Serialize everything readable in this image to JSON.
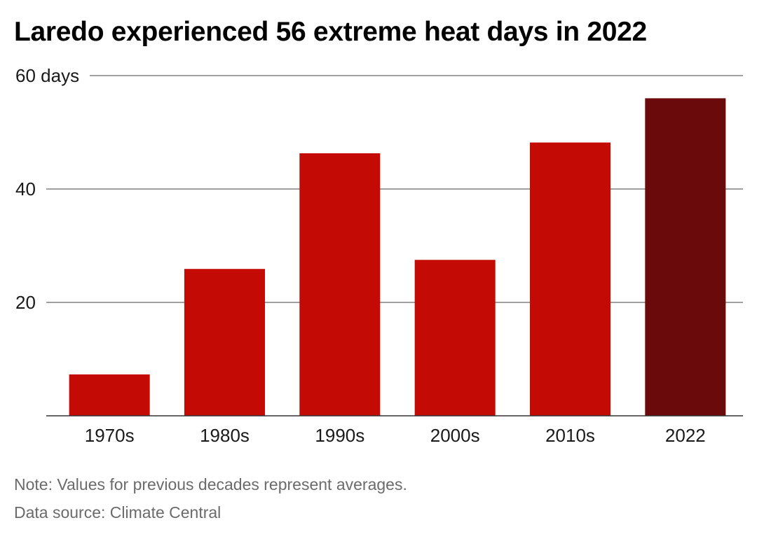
{
  "title": "Laredo experienced 56 extreme heat days in 2022",
  "note": "Note: Values for previous decades represent averages.",
  "source": "Data source: Climate Central",
  "colors": {
    "bar": "#c40a05",
    "highlight": "#6a0a0b"
  },
  "chart_data": {
    "type": "bar",
    "title": "Laredo experienced 56 extreme heat days in 2022",
    "xlabel": "",
    "ylabel": "",
    "categories": [
      "1970s",
      "1980s",
      "1990s",
      "2000s",
      "2010s",
      "2022"
    ],
    "values": [
      7.3,
      25.9,
      46.3,
      27.5,
      48.2,
      56
    ],
    "highlight_index": 5,
    "ylim": [
      0,
      60
    ],
    "yticks": [
      {
        "value": 20,
        "label": "20"
      },
      {
        "value": 40,
        "label": "40"
      },
      {
        "value": 60,
        "label": "60 days"
      }
    ],
    "grid": true,
    "legend": "none"
  }
}
